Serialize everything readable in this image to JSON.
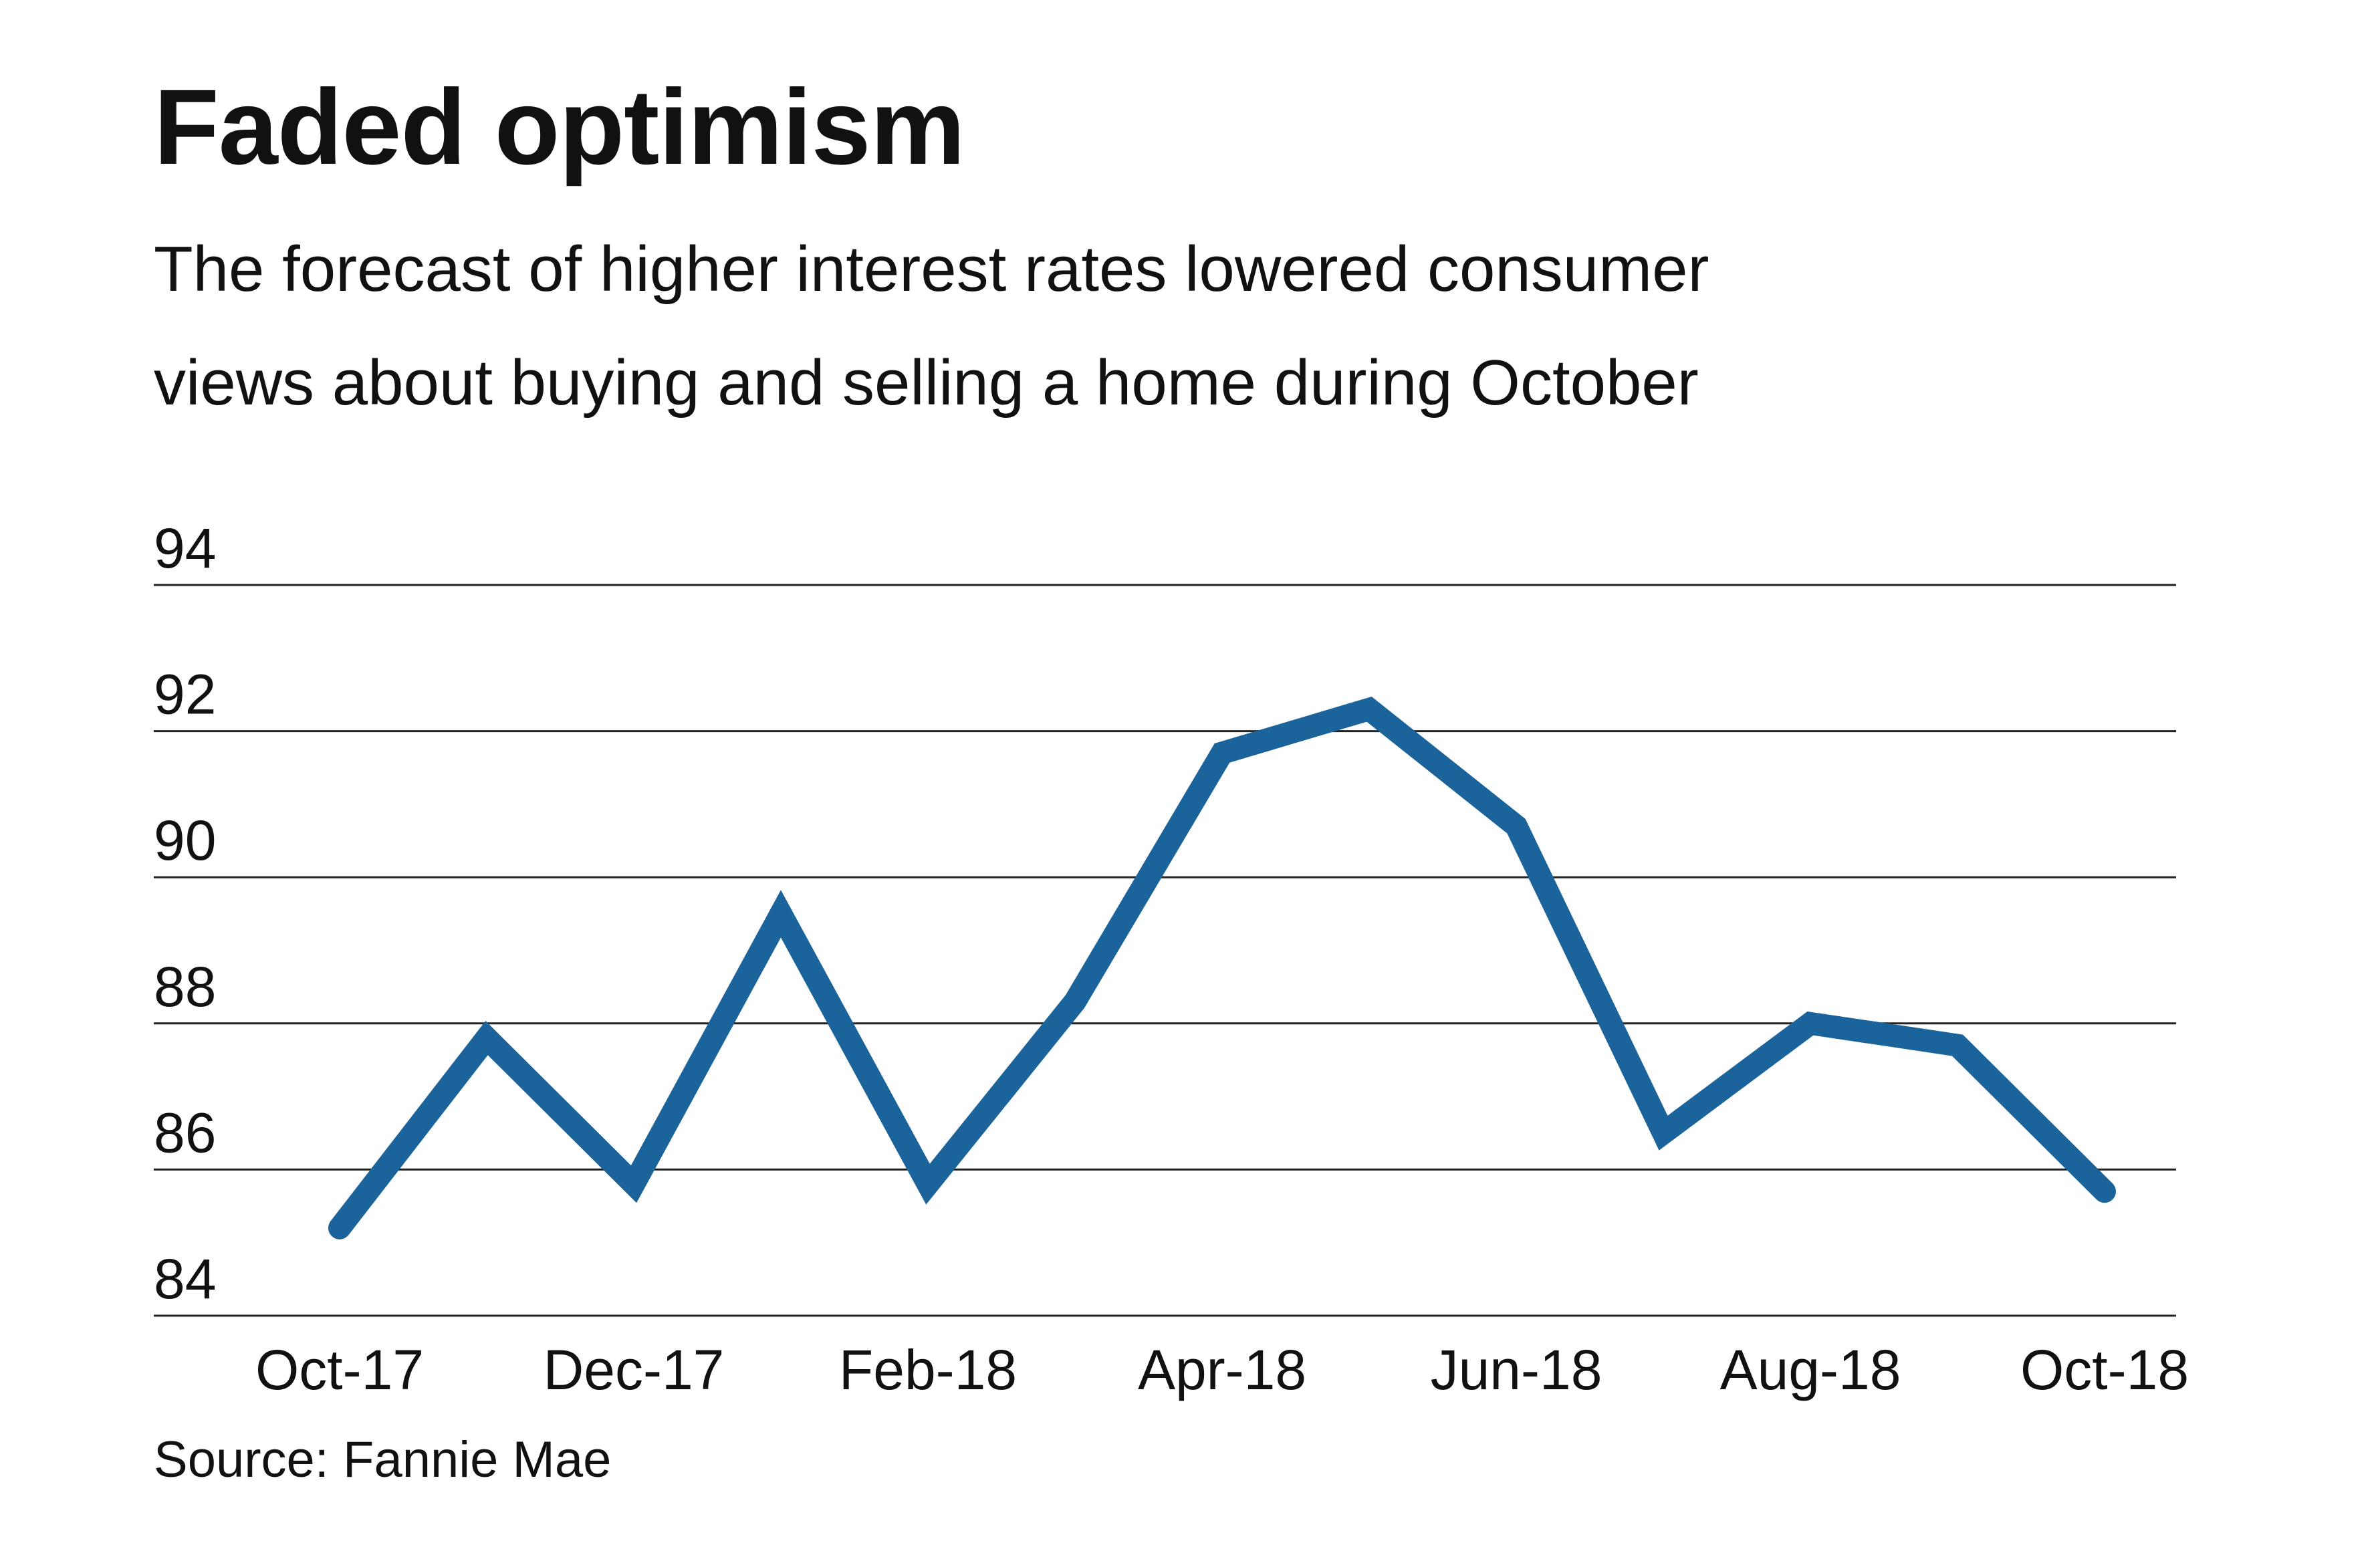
{
  "title": "Faded optimism",
  "subtitle": {
    "line1": "The forecast of higher interest rates lowered consumer",
    "line2": "views about buying and selling a home during October"
  },
  "source": "Source: Fannie Mae",
  "chart_data": {
    "type": "line",
    "title": "Faded optimism",
    "subtitle": "The forecast of higher interest rates lowered consumer views about buying and selling a home during October",
    "xlabel": "",
    "ylabel": "",
    "x": [
      "Oct-17",
      "Nov-17",
      "Dec-17",
      "Jan-18",
      "Feb-18",
      "Mar-18",
      "Apr-18",
      "May-18",
      "Jun-18",
      "Jul-18",
      "Aug-18",
      "Sep-18",
      "Oct-18"
    ],
    "x_tick_labels": [
      "Oct-17",
      "Dec-17",
      "Feb-18",
      "Apr-18",
      "Jun-18",
      "Aug-18",
      "Oct-18"
    ],
    "series": [
      {
        "values": [
          85.2,
          87.8,
          85.8,
          89.5,
          85.8,
          88.3,
          91.7,
          92.3,
          90.7,
          86.5,
          88.0,
          87.7,
          85.7
        ]
      }
    ],
    "ylim": [
      84,
      94
    ],
    "yticks": [
      84,
      86,
      88,
      90,
      92,
      94
    ],
    "grid": true,
    "legend": "none",
    "colors": {
      "line": "#1b639b",
      "grid": "#222222"
    }
  }
}
